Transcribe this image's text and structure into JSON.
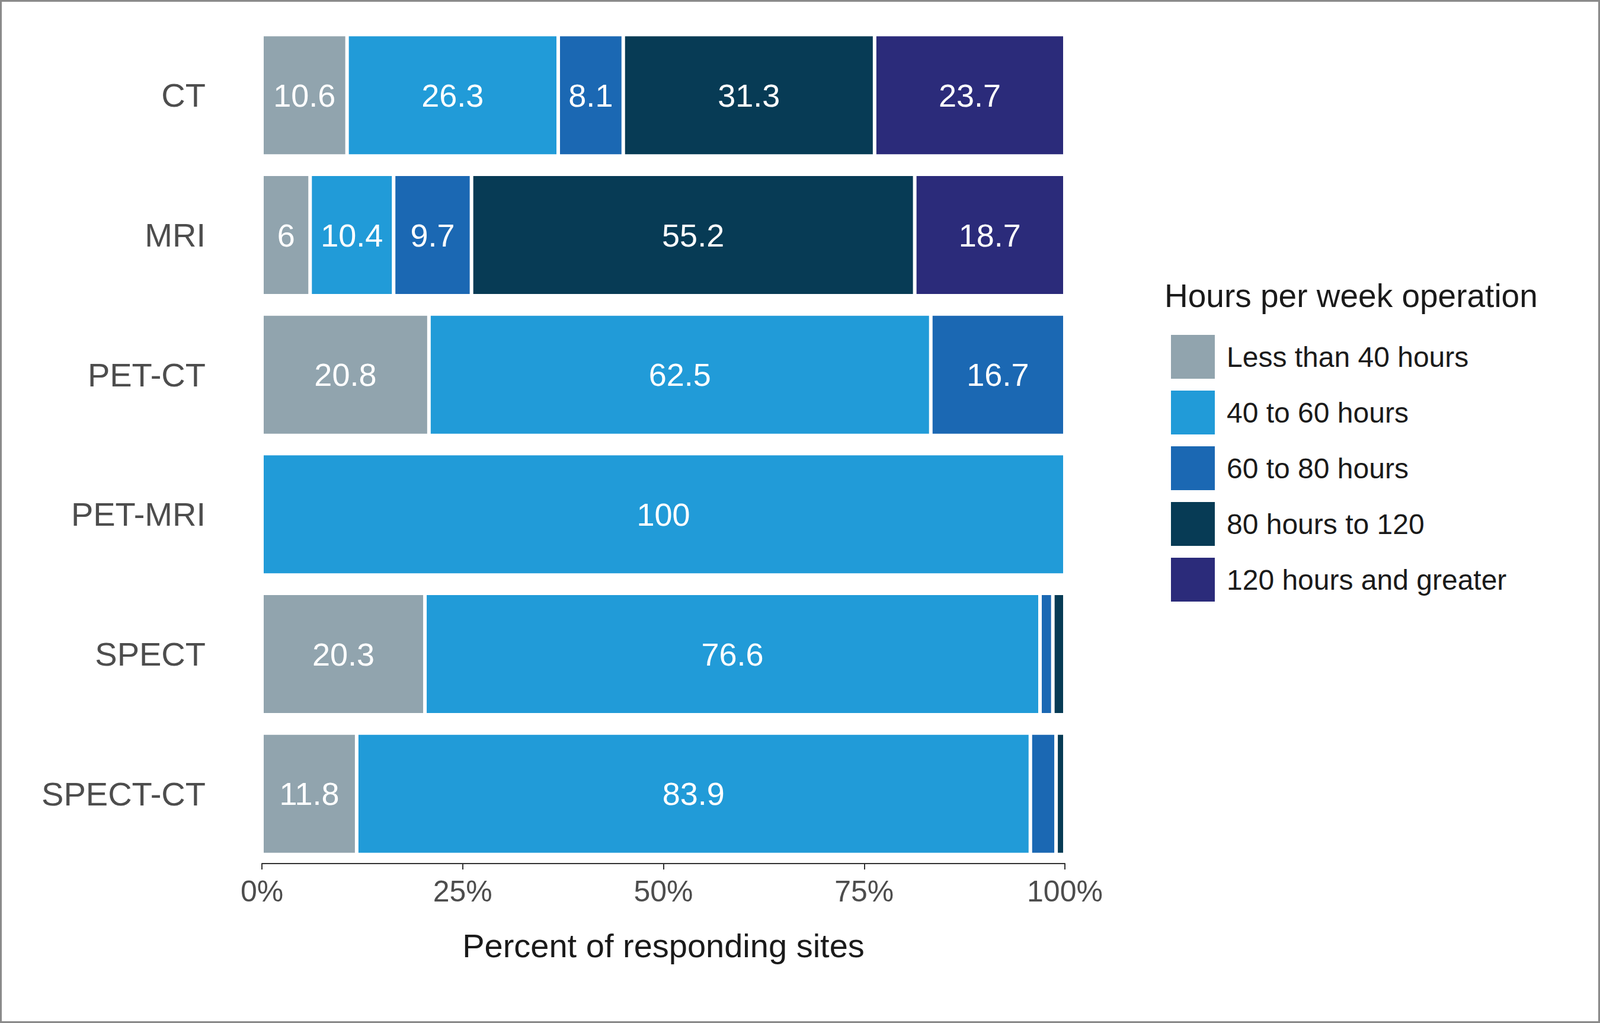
{
  "chart_data": {
    "type": "bar",
    "orientation": "horizontal",
    "stacked": true,
    "data_labels": true,
    "grid": false,
    "legend": "right",
    "legend_title": "Hours per week operation",
    "x_label": "Percent of responding sites",
    "categories": [
      "CT",
      "MRI",
      "PET-CT",
      "PET-MRI",
      "SPECT",
      "SPECT-CT"
    ],
    "xlim": [
      0,
      100
    ],
    "xticks": [
      {
        "value": 0,
        "label": "0%"
      },
      {
        "value": 25,
        "label": "25%"
      },
      {
        "value": 50,
        "label": "50%"
      },
      {
        "value": 75,
        "label": "75%"
      },
      {
        "value": 100,
        "label": "100%"
      }
    ],
    "series": [
      {
        "name": "Less than 40 hours",
        "color": "#91a4ae",
        "values": [
          10.6,
          6,
          20.8,
          null,
          20.3,
          11.8
        ],
        "value_labels": [
          "10.6",
          "6",
          "20.8",
          null,
          "20.3",
          "11.8"
        ]
      },
      {
        "name": "40 to 60 hours",
        "color": "#219bd8",
        "values": [
          26.3,
          10.4,
          62.5,
          100,
          76.6,
          83.9
        ],
        "value_labels": [
          "26.3",
          "10.4",
          "62.5",
          "100",
          "76.6",
          "83.9"
        ]
      },
      {
        "name": "60 to 80 hours",
        "color": "#1b68b3",
        "values": [
          8.1,
          9.7,
          16.7,
          null,
          1.6,
          3.2
        ],
        "value_labels": [
          "8.1",
          "9.7",
          "16.7",
          null,
          null,
          null
        ]
      },
      {
        "name": "80 hours to 120",
        "color": "#073b55",
        "values": [
          31.3,
          55.2,
          null,
          null,
          1.5,
          1.1
        ],
        "value_labels": [
          "31.3",
          "55.2",
          null,
          null,
          null,
          null
        ]
      },
      {
        "name": "120 hours and greater",
        "color": "#2b2b7a",
        "values": [
          23.7,
          18.7,
          null,
          null,
          null,
          null
        ],
        "value_labels": [
          "23.7",
          "18.7",
          null,
          null,
          null,
          null
        ]
      }
    ]
  }
}
